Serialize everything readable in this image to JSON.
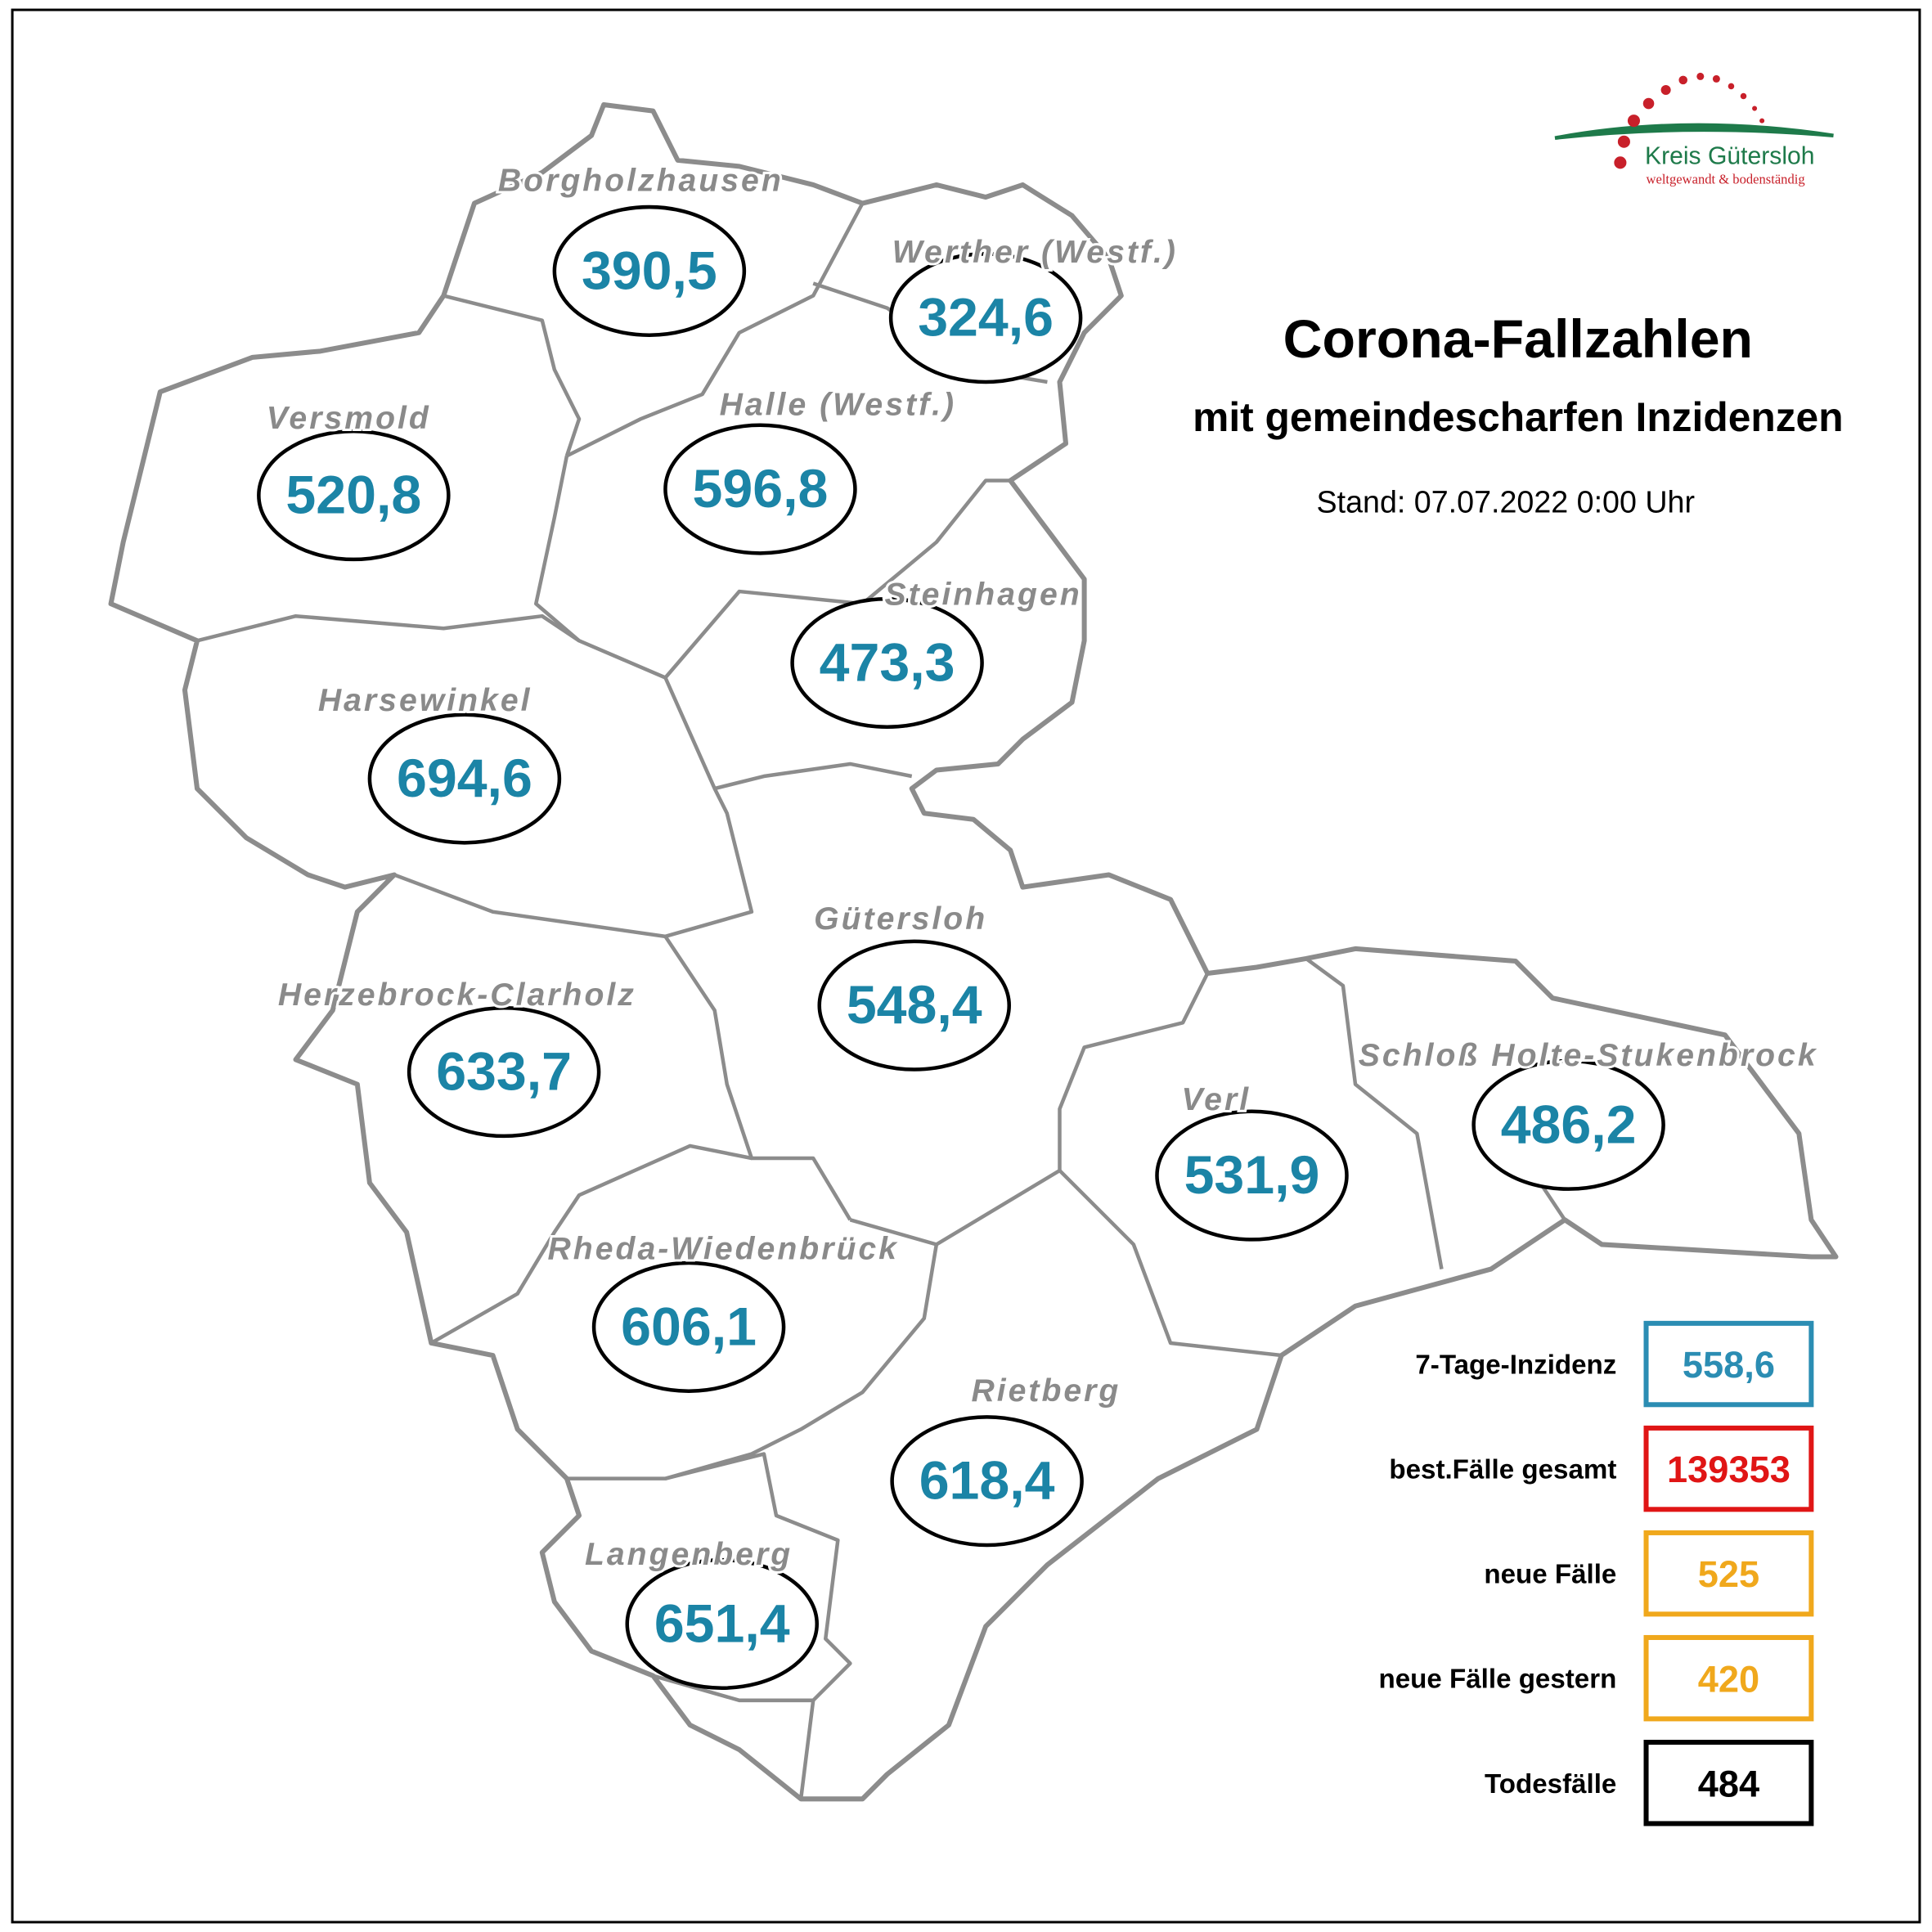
{
  "header": {
    "title": "Corona-Fallzahlen",
    "subtitle": "mit gemeindescharfen Inzidenzen",
    "date": "Stand: 07.07.2022 0:00 Uhr"
  },
  "logo": {
    "name": "Kreis Gütersloh",
    "slogan": "weltgewandt & bodenständig"
  },
  "municipalities": [
    {
      "name": "Borgholzhausen",
      "incidence": "390,5"
    },
    {
      "name": "Werther (Westf.)",
      "incidence": "324,6"
    },
    {
      "name": "Versmold",
      "incidence": "520,8"
    },
    {
      "name": "Halle (Westf.)",
      "incidence": "596,8"
    },
    {
      "name": "Steinhagen",
      "incidence": "473,3"
    },
    {
      "name": "Harsewinkel",
      "incidence": "694,6"
    },
    {
      "name": "Gütersloh",
      "incidence": "548,4"
    },
    {
      "name": "Herzebrock-Clarholz",
      "incidence": "633,7"
    },
    {
      "name": "Schloß Holte-Stukenbrock",
      "incidence": "486,2"
    },
    {
      "name": "Verl",
      "incidence": "531,9"
    },
    {
      "name": "Rheda-Wiedenbrück",
      "incidence": "606,1"
    },
    {
      "name": "Rietberg",
      "incidence": "618,4"
    },
    {
      "name": "Langenberg",
      "incidence": "651,4"
    }
  ],
  "legend": [
    {
      "label": "7-Tage-Inzidenz",
      "value": "558,6",
      "color": "#2b8db3"
    },
    {
      "label": "best.Fälle gesamt",
      "value": "139353",
      "color": "#e01515"
    },
    {
      "label": "neue Fälle",
      "value": "525",
      "color": "#f0a81c"
    },
    {
      "label": "neue Fälle gestern",
      "value": "420",
      "color": "#f0a81c"
    },
    {
      "label": "Todesfälle",
      "value": "484",
      "color": "#000000"
    }
  ]
}
